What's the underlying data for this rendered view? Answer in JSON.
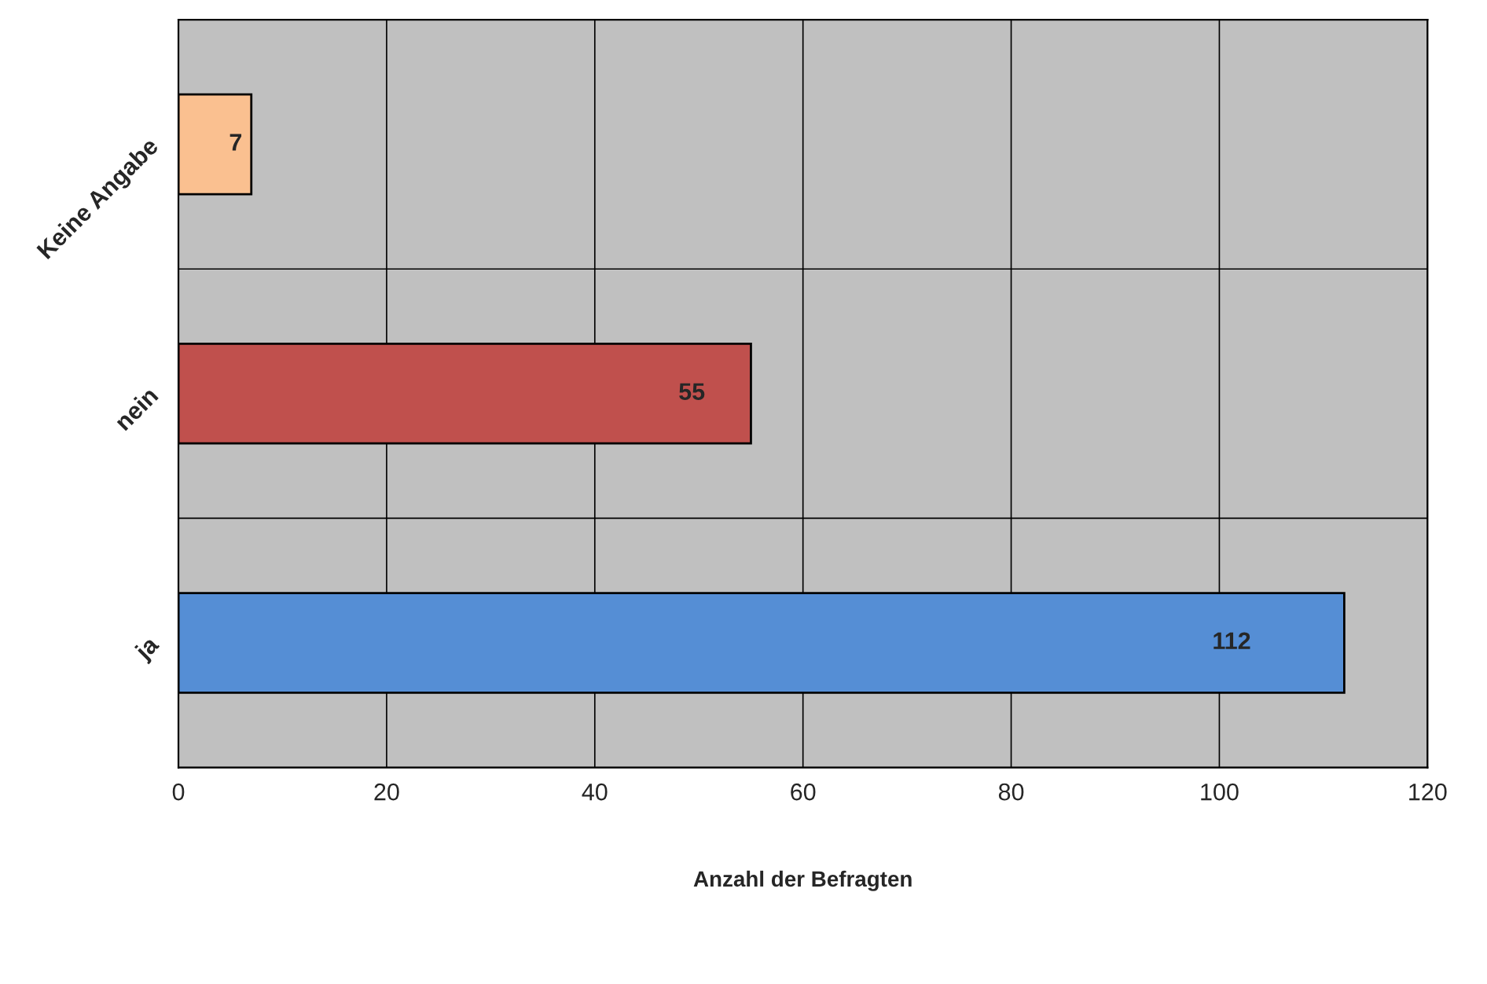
{
  "chart_data": {
    "type": "bar",
    "orientation": "horizontal",
    "xlabel": "Anzahl der Befragten",
    "categories": [
      "Keine Angabe",
      "nein",
      "ja"
    ],
    "values": [
      7,
      55,
      112
    ],
    "colors": [
      "#fac090",
      "#c0504d",
      "#558ed5"
    ],
    "xlim": [
      0,
      120
    ],
    "xticks": [
      0,
      20,
      40,
      60,
      80,
      100,
      120
    ],
    "grid": true,
    "data_labels": true
  }
}
